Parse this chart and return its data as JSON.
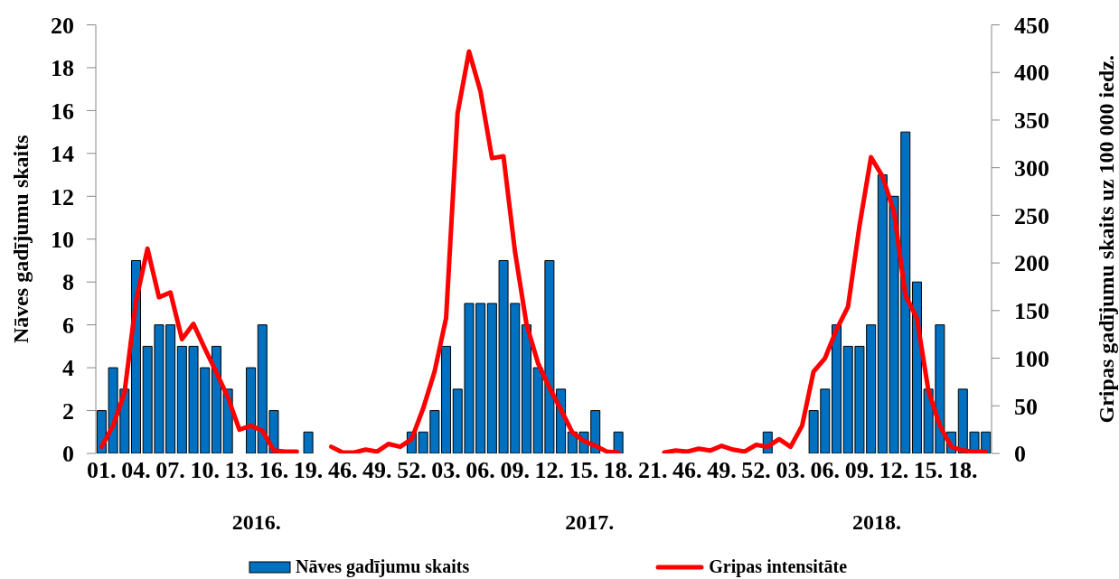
{
  "chart_data": {
    "type": "bar",
    "ylabel": "Nāves gadījumu skaits",
    "y2label": "Gripas gadījumu skaits uz 100 000 iedz.",
    "categories": [
      "01.",
      null,
      null,
      "04.",
      null,
      null,
      "07.",
      null,
      null,
      "10.",
      null,
      null,
      "13.",
      null,
      null,
      "16.",
      null,
      null,
      "19.",
      null,
      null,
      "46.",
      null,
      null,
      "49.",
      null,
      null,
      "52.",
      null,
      null,
      "03.",
      null,
      null,
      "06.",
      null,
      null,
      "09.",
      null,
      null,
      "12.",
      null,
      null,
      "15.",
      null,
      null,
      "18.",
      null,
      null,
      "21.",
      null,
      null,
      "46.",
      null,
      null,
      "49.",
      null,
      null,
      "52.",
      null,
      null,
      "03.",
      null,
      null,
      "06.",
      null,
      null,
      "09.",
      null,
      null,
      "12.",
      null,
      null,
      "15.",
      null,
      null,
      "18.",
      null,
      null
    ],
    "series": [
      {
        "name": "Nāves gadījumu skaits",
        "color": "#0070c0",
        "values": [
          2,
          4,
          3,
          9,
          5,
          6,
          6,
          5,
          5,
          4,
          5,
          3,
          0,
          4,
          6,
          2,
          0,
          0,
          1,
          null,
          0,
          0,
          0,
          0,
          0,
          0,
          0,
          1,
          1,
          2,
          5,
          3,
          7,
          7,
          7,
          9,
          7,
          6,
          4,
          9,
          3,
          1,
          1,
          2,
          0,
          1,
          null,
          null,
          null,
          0,
          0,
          0,
          0,
          0,
          0,
          0,
          0,
          0,
          1,
          0,
          0,
          0,
          2,
          3,
          6,
          5,
          5,
          6,
          13,
          12,
          15,
          8,
          3,
          6,
          1,
          3,
          1,
          1
        ]
      },
      {
        "name": "Gripas intensitāte",
        "type": "line",
        "axis": "y2",
        "color": "#ff0000",
        "values": [
          7,
          29,
          64,
          160,
          215,
          164,
          169,
          120,
          136,
          110,
          85,
          59,
          25,
          29,
          24,
          3,
          2,
          2,
          null,
          null,
          7,
          1,
          1,
          4,
          2,
          10,
          7,
          15,
          47,
          86,
          142,
          357,
          422,
          380,
          310,
          312,
          212,
          136,
          95,
          69,
          46,
          22,
          13,
          8,
          2,
          1,
          null,
          null,
          null,
          1,
          3,
          2,
          5,
          3,
          8,
          4,
          2,
          9,
          7,
          15,
          7,
          29,
          86,
          100,
          130,
          154,
          239,
          311,
          291,
          254,
          166,
          142,
          66,
          29,
          7,
          3,
          2,
          2
        ]
      }
    ],
    "ylim": [
      0,
      20
    ],
    "yticks": [
      0,
      2,
      4,
      6,
      8,
      10,
      12,
      14,
      16,
      18,
      20
    ],
    "y2lim": [
      0,
      450
    ],
    "y2ticks": [
      0,
      50,
      100,
      150,
      200,
      250,
      300,
      350,
      400,
      450
    ],
    "annotations": [
      "2016.",
      "2017.",
      "2018."
    ],
    "legend": "bottom"
  }
}
